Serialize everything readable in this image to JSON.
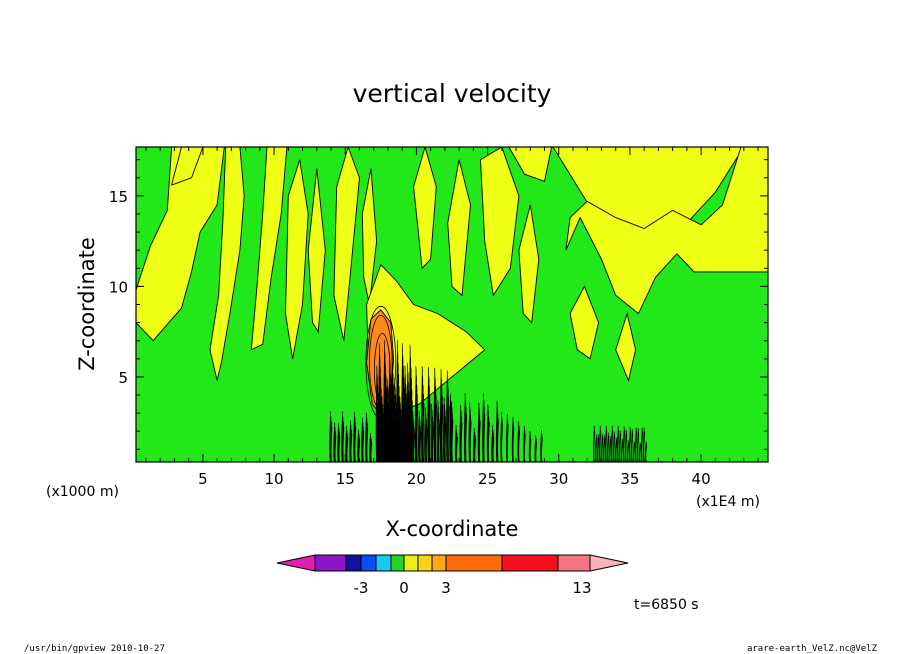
{
  "chart_data": {
    "type": "heatmap",
    "title": "vertical velocity",
    "xlabel": "X-coordinate",
    "ylabel": "Z-coordinate",
    "x_unit_left": "(x1000 m)",
    "x_unit_right": "(x1E4 m)",
    "xlim": [
      0.3,
      44.7
    ],
    "ylim": [
      0.3,
      17.7
    ],
    "x_ticks": [
      5,
      10,
      15,
      20,
      25,
      30,
      35,
      40
    ],
    "y_ticks": [
      5,
      10,
      15
    ],
    "colorbar": {
      "levels": [
        -6,
        -5,
        -4,
        -3,
        -2,
        -1,
        0,
        1,
        2,
        3,
        7,
        11,
        13
      ],
      "tick_labels": [
        "-3",
        "0",
        "3",
        "13"
      ],
      "tick_values": [
        -3,
        0,
        3,
        13
      ],
      "colors": [
        "#e21db0",
        "#8a16c4",
        "#1212a0",
        "#0b4ef0",
        "#1ac8f5",
        "#22d422",
        "#e8ee19",
        "#ffd21a",
        "#ffa914",
        "#ff6a0b",
        "#f4101f",
        "#f27580",
        "#fbb3bb"
      ]
    },
    "field_colors": {
      "weak_negative": "#22e81a",
      "weak_positive": "#eeff15",
      "moderate_positive": "#ff8b1c"
    },
    "time_label": "t=6850 s"
  },
  "footer": {
    "left": "/usr/bin/gpview  2010-10-27",
    "right": "arare-earth_VelZ.nc@VelZ"
  }
}
